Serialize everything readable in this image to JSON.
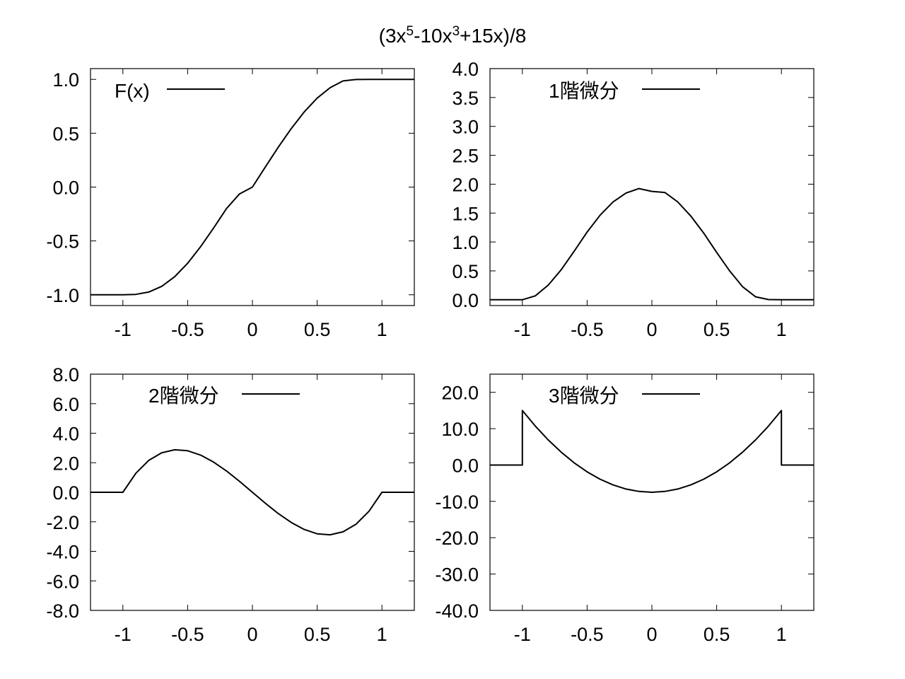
{
  "title": {
    "parts": [
      {
        "text": "(3x",
        "sup": false
      },
      {
        "text": "5",
        "sup": true
      },
      {
        "text": "-10x",
        "sup": false
      },
      {
        "text": "3",
        "sup": true
      },
      {
        "text": "+15x)/8",
        "sup": false
      }
    ]
  },
  "chart_data": [
    {
      "type": "line",
      "legend": "F(x)",
      "legend_position": "top-left",
      "xlim": [
        -1.25,
        1.25
      ],
      "ylim": [
        -1.1,
        1.1
      ],
      "x_ticks": [
        -1,
        -0.5,
        0,
        0.5,
        1
      ],
      "x_tick_labels": [
        "-1",
        "-0.5",
        "0",
        "0.5",
        "1"
      ],
      "y_ticks": [
        1.0,
        0.5,
        0.0,
        -0.5,
        -1.0
      ],
      "y_tick_labels": [
        "1.0",
        "0.5",
        "0.0",
        "-0.5",
        "-1.0"
      ],
      "grid": false,
      "series": [
        {
          "x": [
            -1.25,
            -1.0,
            -0.9,
            -0.8,
            -0.7,
            -0.6,
            -0.5,
            -0.4,
            -0.3,
            -0.2,
            -0.1,
            0.0,
            0.1,
            0.2,
            0.3,
            0.4,
            0.5,
            0.6,
            0.7,
            0.8,
            0.9,
            1.0,
            1.25
          ],
          "values": [
            -1.0,
            -1.0,
            -0.9965,
            -0.9744,
            -0.9213,
            -0.8318,
            -0.707,
            -0.5536,
            -0.3814,
            -0.199,
            -0.0637,
            0.0,
            0.1863,
            0.3706,
            0.544,
            0.6982,
            0.8262,
            0.9228,
            0.9855,
            0.9986,
            0.9996,
            1.0,
            1.0
          ]
        }
      ]
    },
    {
      "type": "line",
      "legend": "1階微分",
      "legend_position": "top",
      "xlim": [
        -1.25,
        1.25
      ],
      "ylim": [
        -0.1,
        4.0
      ],
      "x_ticks": [
        -1,
        -0.5,
        0,
        0.5,
        1
      ],
      "x_tick_labels": [
        "-1",
        "-0.5",
        "0",
        "0.5",
        "1"
      ],
      "y_ticks": [
        4.0,
        3.5,
        3.0,
        2.5,
        2.0,
        1.5,
        1.0,
        0.5,
        0.0
      ],
      "y_tick_labels": [
        "4.0",
        "3.5",
        "3.0",
        "2.5",
        "2.0",
        "1.5",
        "1.0",
        "0.5",
        "0.0"
      ],
      "grid": false,
      "series": [
        {
          "x": [
            -1.25,
            -1.0,
            -0.9,
            -0.8,
            -0.7,
            -0.6,
            -0.5,
            -0.4,
            -0.3,
            -0.2,
            -0.1,
            0.0,
            0.1,
            0.2,
            0.3,
            0.4,
            0.5,
            0.6,
            0.7,
            0.8,
            0.9,
            1.0,
            1.25
          ],
          "values": [
            0.0,
            0.0,
            0.0677,
            0.2531,
            0.5203,
            0.84,
            1.1719,
            1.463,
            1.6921,
            1.8468,
            1.9238,
            1.875,
            1.8564,
            1.6934,
            1.4491,
            1.1533,
            0.8203,
            0.501,
            0.227,
            0.0512,
            0.0036,
            0.0,
            0.0
          ]
        }
      ]
    },
    {
      "type": "line",
      "legend": "2階微分",
      "legend_position": "top",
      "xlim": [
        -1.25,
        1.25
      ],
      "ylim": [
        -8.0,
        8.0
      ],
      "x_ticks": [
        -1,
        -0.5,
        0,
        0.5,
        1
      ],
      "x_tick_labels": [
        "-1",
        "-0.5",
        "0",
        "0.5",
        "1"
      ],
      "y_ticks": [
        8.0,
        6.0,
        4.0,
        2.0,
        0.0,
        -2.0,
        -4.0,
        -6.0,
        -8.0
      ],
      "y_tick_labels": [
        "8.0",
        "6.0",
        "4.0",
        "2.0",
        "0.0",
        "-2.0",
        "-4.0",
        "-6.0",
        "-8.0"
      ],
      "grid": false,
      "series": [
        {
          "x": [
            -1.25,
            -1.0,
            -0.9,
            -0.8,
            -0.7,
            -0.6,
            -0.5,
            -0.4,
            -0.3,
            -0.2,
            -0.1,
            0.0,
            0.1,
            0.2,
            0.3,
            0.4,
            0.5,
            0.6,
            0.7,
            0.8,
            0.9,
            1.0,
            1.25
          ],
          "values": [
            0.0,
            0.0,
            1.2825,
            2.16,
            2.6775,
            2.88,
            2.8125,
            2.52,
            2.0475,
            1.44,
            0.7425,
            0.0,
            -0.7425,
            -1.44,
            -2.0475,
            -2.52,
            -2.8125,
            -2.88,
            -2.6775,
            -2.16,
            -1.2825,
            0.0,
            0.0
          ]
        }
      ]
    },
    {
      "type": "line",
      "legend": "3階微分",
      "legend_position": "top",
      "xlim": [
        -1.25,
        1.25
      ],
      "ylim": [
        -40.0,
        25.0
      ],
      "x_ticks": [
        -1,
        -0.5,
        0,
        0.5,
        1
      ],
      "x_tick_labels": [
        "-1",
        "-0.5",
        "0",
        "0.5",
        "1"
      ],
      "y_ticks": [
        20.0,
        10.0,
        0.0,
        -10.0,
        -20.0,
        -30.0,
        -40.0
      ],
      "y_tick_labels": [
        "20.0",
        "10.0",
        "0.0",
        "-10.0",
        "-20.0",
        "-30.0",
        "-40.0"
      ],
      "grid": false,
      "series": [
        {
          "x": [
            -1.25,
            -1.0,
            -1.0,
            -0.9,
            -0.8,
            -0.7,
            -0.6,
            -0.5,
            -0.4,
            -0.3,
            -0.2,
            -0.1,
            0.0,
            0.1,
            0.2,
            0.3,
            0.4,
            0.5,
            0.6,
            0.7,
            0.8,
            0.9,
            1.0,
            1.0,
            1.25
          ],
          "values": [
            0.0,
            0.0,
            15.0,
            10.725,
            6.9,
            3.525,
            0.6,
            -1.875,
            -3.9,
            -5.475,
            -6.6,
            -7.275,
            -7.5,
            -7.275,
            -6.6,
            -5.475,
            -3.9,
            -1.875,
            0.6,
            3.525,
            6.9,
            10.725,
            15.0,
            0.0,
            0.0
          ]
        }
      ]
    }
  ]
}
